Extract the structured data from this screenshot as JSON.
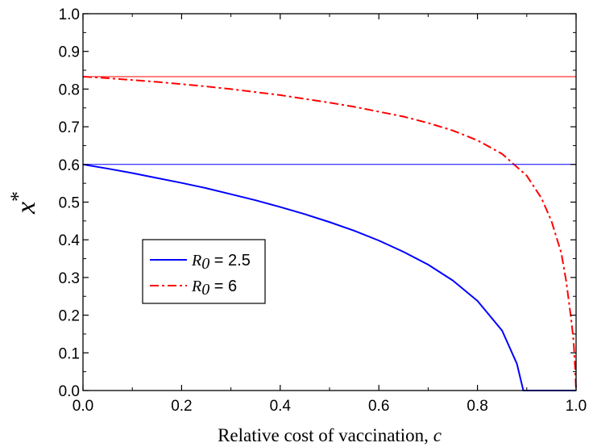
{
  "chart_data": {
    "type": "line",
    "xlabel": "Relative cost of vaccination, c",
    "xlabel_main": "Relative cost of vaccination, ",
    "xlabel_var": "c",
    "ylabel": "x*",
    "ylabel_main": "x",
    "ylabel_sup": "*",
    "xlim": [
      0.0,
      1.0
    ],
    "ylim": [
      0.0,
      1.0
    ],
    "x_ticks": [
      "0.0",
      "0.2",
      "0.4",
      "0.6",
      "0.8",
      "1.0"
    ],
    "y_ticks": [
      "0.0",
      "0.1",
      "0.2",
      "0.3",
      "0.4",
      "0.5",
      "0.6",
      "0.7",
      "0.8",
      "0.9",
      "1.0"
    ],
    "grid": false,
    "legend_position": "left-center",
    "series": [
      {
        "name": "R0 = 2.5",
        "legend_symbol": "R",
        "legend_subscript": "0",
        "legend_value": " = 2.5",
        "color": "#0000ff",
        "style": "solid",
        "x": [
          0.0,
          0.05,
          0.1,
          0.15,
          0.2,
          0.25,
          0.3,
          0.35,
          0.4,
          0.45,
          0.5,
          0.55,
          0.6,
          0.65,
          0.7,
          0.75,
          0.8,
          0.85,
          0.88,
          0.893,
          0.9,
          0.95,
          1.0
        ],
        "y": [
          0.6,
          0.589,
          0.577,
          0.564,
          0.551,
          0.537,
          0.521,
          0.505,
          0.487,
          0.468,
          0.447,
          0.424,
          0.398,
          0.368,
          0.334,
          0.292,
          0.238,
          0.159,
          0.071,
          0.0,
          0.0,
          0.0,
          0.0
        ]
      },
      {
        "name": "R0 = 6",
        "legend_symbol": "R",
        "legend_subscript": "0",
        "legend_value": " = 6",
        "color": "#ff0000",
        "style": "dashdot",
        "x": [
          0.0,
          0.05,
          0.1,
          0.15,
          0.2,
          0.25,
          0.3,
          0.35,
          0.4,
          0.45,
          0.5,
          0.55,
          0.6,
          0.65,
          0.7,
          0.75,
          0.8,
          0.85,
          0.9,
          0.93,
          0.95,
          0.97,
          0.98,
          0.99,
          0.995,
          0.998,
          1.0
        ],
        "y": [
          0.833,
          0.829,
          0.824,
          0.819,
          0.813,
          0.807,
          0.8,
          0.792,
          0.784,
          0.774,
          0.764,
          0.753,
          0.74,
          0.727,
          0.71,
          0.69,
          0.664,
          0.628,
          0.57,
          0.51,
          0.45,
          0.365,
          0.29,
          0.19,
          0.13,
          0.06,
          0.0
        ]
      },
      {
        "color": "#0000ff",
        "style": "thin-solid",
        "x": [
          0.0,
          1.0
        ],
        "y": [
          0.6,
          0.6
        ]
      },
      {
        "color": "#ff0000",
        "style": "thin-solid",
        "x": [
          0.0,
          1.0
        ],
        "y": [
          0.833,
          0.833
        ]
      }
    ]
  }
}
